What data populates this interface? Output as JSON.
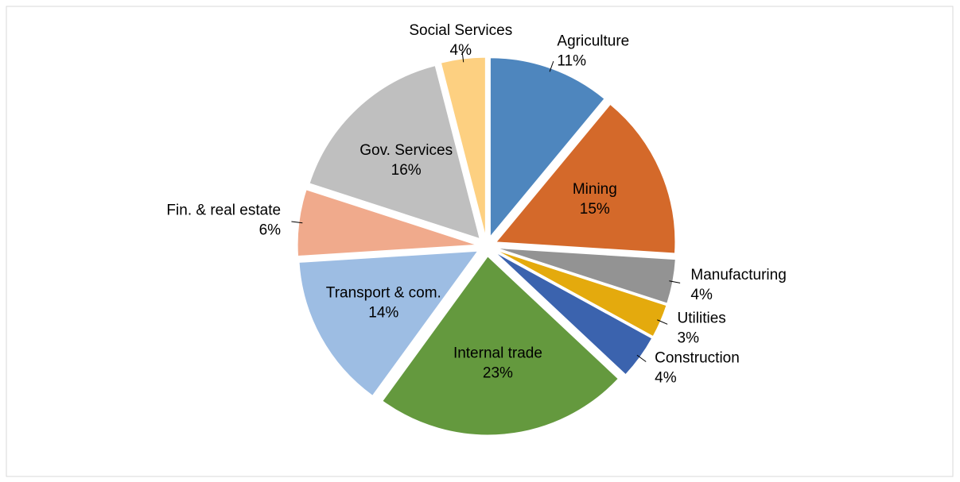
{
  "chart_data": {
    "type": "pie",
    "categories": [
      "Agriculture",
      "Mining",
      "Manufacturing",
      "Utilities",
      "Construction",
      "Internal trade",
      "Transport & com.",
      "Fin. & real estate",
      "Gov. Services",
      "Social Services"
    ],
    "values": [
      11,
      15,
      4,
      3,
      4,
      23,
      14,
      6,
      16,
      4
    ],
    "value_labels": [
      "11%",
      "15%",
      "4%",
      "3%",
      "4%",
      "23%",
      "14%",
      "6%",
      "16%",
      "4%"
    ],
    "colors": [
      "#4e86be",
      "#d4692a",
      "#939393",
      "#e4aa0d",
      "#3b63ae",
      "#64993e",
      "#9dbde3",
      "#f0aa8c",
      "#bfbfbf",
      "#fdd081"
    ]
  }
}
